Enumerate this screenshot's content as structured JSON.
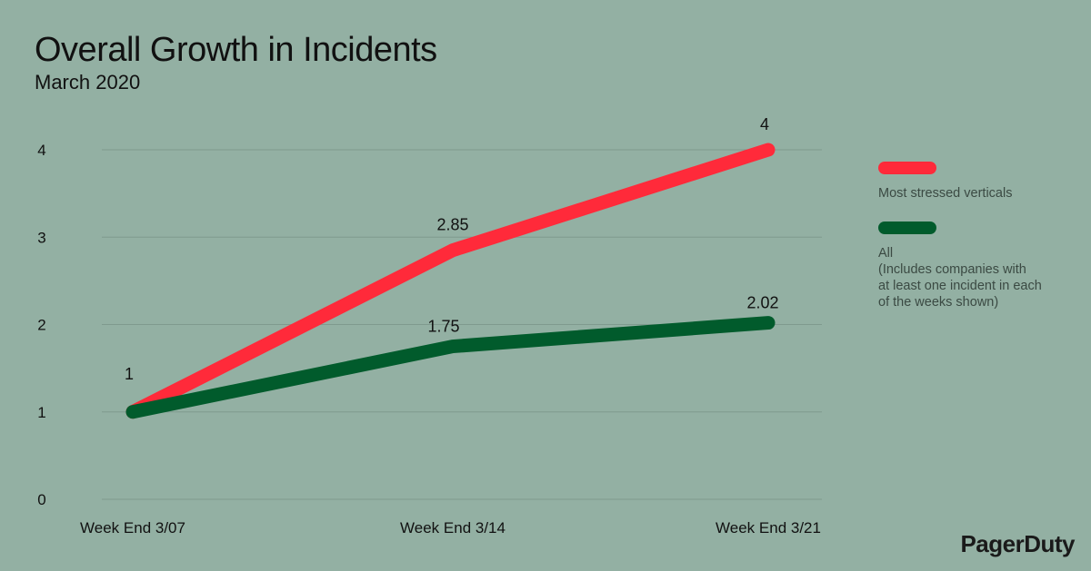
{
  "header": {
    "title": "Overall Growth in Incidents",
    "subtitle": "March 2020"
  },
  "brand": {
    "name": "PagerDuty"
  },
  "colors": {
    "background": "#93b0a3",
    "series_red": "#ff2a3a",
    "series_green": "#015b2c",
    "grid": "#7f9a8e"
  },
  "chart_data": {
    "type": "line",
    "title": "Overall Growth in Incidents",
    "subtitle": "March 2020",
    "categories": [
      "Week End 3/07",
      "Week End 3/14",
      "Week End 3/21"
    ],
    "ylim": [
      0,
      4
    ],
    "yticks": [
      "0",
      "1",
      "2",
      "3",
      "4"
    ],
    "grid": true,
    "legend_position": "right",
    "series": [
      {
        "name": "Most stressed verticals",
        "color": "#ff2a3a",
        "values": [
          1,
          2.85,
          4
        ],
        "labels": [
          "",
          "2.85",
          "4"
        ]
      },
      {
        "name": "All\n(Includes companies with at least one incident in each of the weeks shown)",
        "color": "#015b2c",
        "values": [
          1,
          1.75,
          2.02
        ],
        "labels": [
          "1",
          "1.75",
          "2.02"
        ]
      }
    ]
  },
  "legend": {
    "items": [
      {
        "label": "Most stressed verticals",
        "color": "#ff2a3a"
      },
      {
        "label": "All\n(Includes companies with\nat least one incident in each\nof the weeks shown)",
        "color": "#015b2c"
      }
    ]
  }
}
